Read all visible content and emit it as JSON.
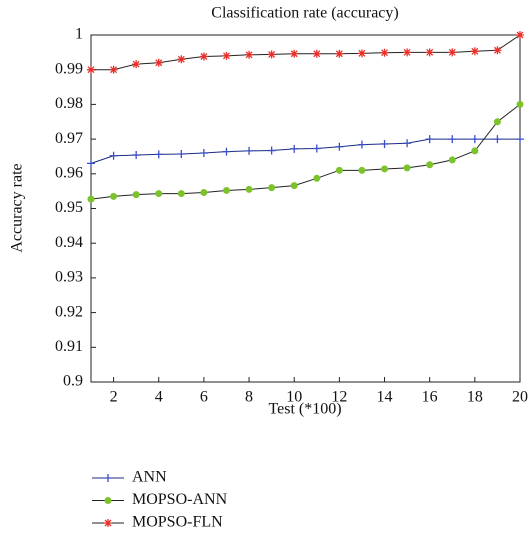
{
  "chart_data": {
    "type": "line",
    "title": "Classification rate (accuracy)",
    "x_label": "Test (*100)",
    "y_label": "Accuracy rate",
    "x": [
      1,
      2,
      3,
      4,
      5,
      6,
      7,
      8,
      9,
      10,
      11,
      12,
      13,
      14,
      15,
      16,
      17,
      18,
      19,
      20
    ],
    "xlim": [
      1,
      20
    ],
    "xticks": [
      2,
      4,
      6,
      8,
      10,
      12,
      14,
      16,
      18,
      20
    ],
    "ylim": [
      0.9,
      1
    ],
    "yticks": [
      0.9,
      0.91,
      0.92,
      0.93,
      0.94,
      0.95,
      0.96,
      0.97,
      0.98,
      0.99,
      1
    ],
    "legend": "below-left",
    "series": [
      {
        "name": "ANN",
        "color": "#3b4fc4",
        "line_color": "#1a2a80",
        "marker": "+",
        "values": [
          0.963,
          0.9652,
          0.9654,
          0.9656,
          0.9657,
          0.966,
          0.9664,
          0.9666,
          0.9667,
          0.9672,
          0.9673,
          0.9678,
          0.9684,
          0.9686,
          0.9688,
          0.97,
          0.97,
          0.97,
          0.97,
          0.97
        ]
      },
      {
        "name": "MOPSO-ANN",
        "color": "#7cc22a",
        "line_color": "#222222",
        "marker": "o",
        "values": [
          0.9527,
          0.9535,
          0.954,
          0.9543,
          0.9543,
          0.9546,
          0.9552,
          0.9555,
          0.956,
          0.9566,
          0.9587,
          0.961,
          0.961,
          0.9614,
          0.9617,
          0.9626,
          0.964,
          0.9666,
          0.975,
          0.98
        ]
      },
      {
        "name": "MOPSO-FLN",
        "color": "#e8302a",
        "line_color": "#222222",
        "marker": "*",
        "values": [
          0.99,
          0.99,
          0.9916,
          0.992,
          0.993,
          0.9938,
          0.994,
          0.9943,
          0.9944,
          0.9946,
          0.9946,
          0.9946,
          0.9947,
          0.9949,
          0.995,
          0.995,
          0.995,
          0.9953,
          0.9956,
          1.0
        ]
      }
    ]
  }
}
